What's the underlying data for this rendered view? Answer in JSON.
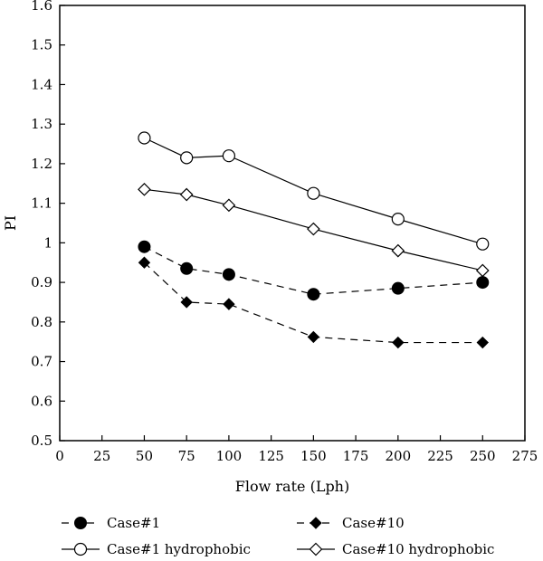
{
  "chart_data": {
    "type": "line",
    "title": "",
    "xlabel": "Flow rate (Lph)",
    "ylabel": "PI",
    "xlim": [
      0,
      275
    ],
    "ylim": [
      0.5,
      1.6
    ],
    "xticks": [
      0,
      25,
      50,
      75,
      100,
      125,
      150,
      175,
      200,
      225,
      250,
      275
    ],
    "yticks": [
      0.5,
      0.6,
      0.7,
      0.8,
      0.9,
      1,
      1.1,
      1.2,
      1.3,
      1.4,
      1.5,
      1.6
    ],
    "ytick_labels": [
      "0.5",
      "0.6",
      "0.7",
      "0.8",
      "0.9",
      "1",
      "1.1",
      "1.2",
      "1.3",
      "1.4",
      "1.5",
      "1.6"
    ],
    "grid": false,
    "legend_position": "bottom",
    "x": [
      50,
      75,
      100,
      150,
      200,
      250
    ],
    "series": [
      {
        "name": "Case#1",
        "values": [
          0.99,
          0.935,
          0.92,
          0.87,
          0.885,
          0.9
        ],
        "marker": "filled-circle",
        "line": "dashed"
      },
      {
        "name": "Case#10",
        "values": [
          0.95,
          0.85,
          0.845,
          0.762,
          0.748,
          0.748
        ],
        "marker": "filled-diamond",
        "line": "dashed"
      },
      {
        "name": "Case#1 hydrophobic",
        "values": [
          1.265,
          1.215,
          1.22,
          1.125,
          1.06,
          0.997
        ],
        "marker": "open-circle",
        "line": "solid"
      },
      {
        "name": "Case#10 hydrophobic",
        "values": [
          1.135,
          1.122,
          1.095,
          1.035,
          0.98,
          0.93
        ],
        "marker": "open-diamond",
        "line": "solid"
      }
    ]
  }
}
